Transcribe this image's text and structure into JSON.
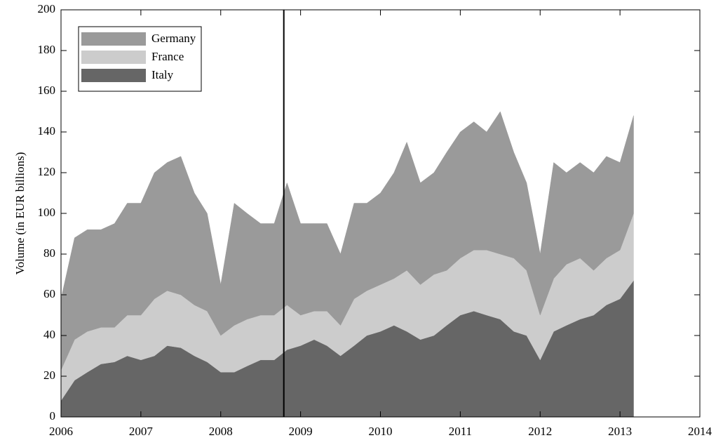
{
  "chart_data": {
    "type": "stacked_area",
    "y_label": "Volume (in EUR billions)",
    "x": [
      2006.0,
      2006.17,
      2006.33,
      2006.5,
      2006.67,
      2006.83,
      2007.0,
      2007.17,
      2007.33,
      2007.5,
      2007.67,
      2007.83,
      2008.0,
      2008.17,
      2008.33,
      2008.5,
      2008.67,
      2008.83,
      2009.0,
      2009.17,
      2009.33,
      2009.5,
      2009.67,
      2009.83,
      2010.0,
      2010.17,
      2010.33,
      2010.5,
      2010.67,
      2010.83,
      2011.0,
      2011.17,
      2011.33,
      2011.5,
      2011.67,
      2011.83,
      2012.0,
      2012.17,
      2012.33,
      2012.5,
      2012.67,
      2012.83,
      2013.0,
      2013.17
    ],
    "series": [
      {
        "name": "Germany",
        "color": "#9a9a9a",
        "values": [
          35,
          50,
          50,
          48,
          51,
          55,
          55,
          62,
          63,
          68,
          55,
          48,
          25,
          60,
          52,
          45,
          45,
          60,
          45,
          43,
          43,
          35,
          47,
          43,
          45,
          52,
          63,
          50,
          50,
          58,
          62,
          63,
          58,
          70,
          52,
          43,
          30,
          57,
          45,
          47,
          48,
          50,
          43,
          48
        ]
      },
      {
        "name": "France",
        "color": "#cccccc",
        "values": [
          15,
          20,
          20,
          18,
          17,
          20,
          22,
          28,
          27,
          26,
          25,
          25,
          18,
          23,
          23,
          22,
          22,
          22,
          15,
          14,
          17,
          15,
          23,
          22,
          23,
          23,
          30,
          27,
          30,
          27,
          28,
          30,
          32,
          32,
          36,
          32,
          22,
          26,
          30,
          30,
          22,
          23,
          24,
          33
        ]
      },
      {
        "name": "Italy",
        "color": "#666666",
        "values": [
          8,
          18,
          22,
          26,
          27,
          30,
          28,
          30,
          35,
          34,
          30,
          27,
          22,
          22,
          25,
          28,
          28,
          33,
          35,
          38,
          35,
          30,
          35,
          40,
          42,
          45,
          42,
          38,
          40,
          45,
          50,
          52,
          50,
          48,
          42,
          40,
          28,
          42,
          45,
          48,
          50,
          55,
          58,
          67
        ]
      }
    ],
    "xlim": [
      2006,
      2014
    ],
    "xticks": [
      2006,
      2007,
      2008,
      2009,
      2010,
      2011,
      2012,
      2013,
      2014
    ],
    "ylim": [
      0,
      200
    ],
    "yticks": [
      0,
      20,
      40,
      60,
      80,
      100,
      120,
      140,
      160,
      180,
      200
    ],
    "vline": 2008.79,
    "legend": "upper left"
  }
}
